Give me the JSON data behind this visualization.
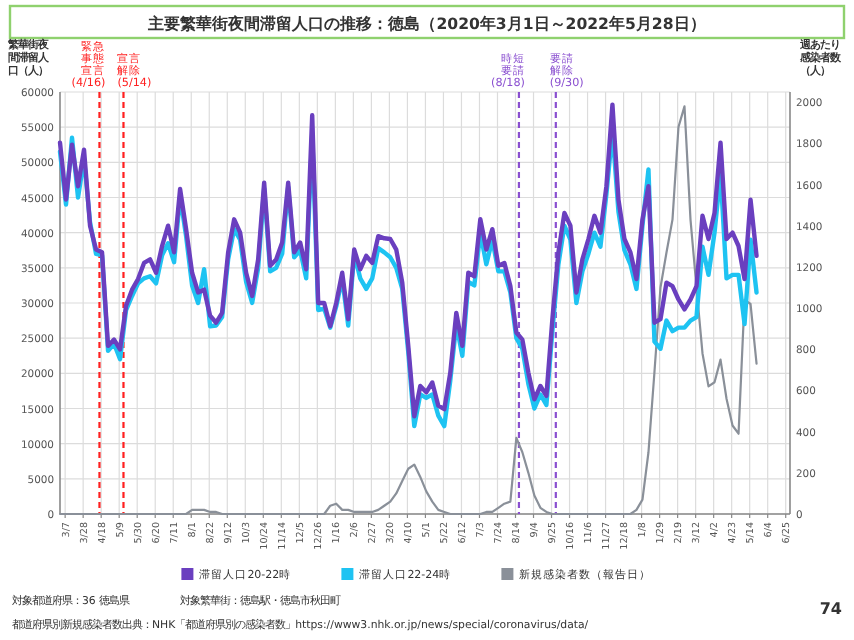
{
  "chart_data": {
    "type": "line",
    "title": "主要繁華街夜間滞留人口の推移：徳島（2020年3月1日～2022年5月28日）",
    "ylabel": "繁華街夜間滞留人口（人）",
    "y2label": "週あたり感染者数（人）",
    "x": [
      "2020-03-01",
      "2020-03-08",
      "2020-03-15",
      "2020-03-22",
      "2020-03-29",
      "2020-04-05",
      "2020-04-12",
      "2020-04-19",
      "2020-04-26",
      "2020-05-03",
      "2020-05-10",
      "2020-05-17",
      "2020-05-24",
      "2020-05-31",
      "2020-06-07",
      "2020-06-14",
      "2020-06-21",
      "2020-06-28",
      "2020-07-05",
      "2020-07-12",
      "2020-07-19",
      "2020-07-26",
      "2020-08-02",
      "2020-08-09",
      "2020-08-16",
      "2020-08-23",
      "2020-08-30",
      "2020-09-06",
      "2020-09-13",
      "2020-09-20",
      "2020-09-27",
      "2020-10-04",
      "2020-10-11",
      "2020-10-18",
      "2020-10-25",
      "2020-11-01",
      "2020-11-08",
      "2020-11-15",
      "2020-11-22",
      "2020-11-29",
      "2020-12-06",
      "2020-12-13",
      "2020-12-20",
      "2020-12-27",
      "2021-01-03",
      "2021-01-10",
      "2021-01-17",
      "2021-01-24",
      "2021-01-31",
      "2021-02-07",
      "2021-02-14",
      "2021-02-21",
      "2021-02-28",
      "2021-03-07",
      "2021-03-14",
      "2021-03-21",
      "2021-03-28",
      "2021-04-04",
      "2021-04-11",
      "2021-04-18",
      "2021-04-25",
      "2021-05-02",
      "2021-05-09",
      "2021-05-16",
      "2021-05-23",
      "2021-05-30",
      "2021-06-06",
      "2021-06-13",
      "2021-06-20",
      "2021-06-27",
      "2021-07-04",
      "2021-07-11",
      "2021-07-18",
      "2021-07-25",
      "2021-08-01",
      "2021-08-08",
      "2021-08-15",
      "2021-08-22",
      "2021-08-29",
      "2021-09-05",
      "2021-09-12",
      "2021-09-19",
      "2021-09-26",
      "2021-10-03",
      "2021-10-10",
      "2021-10-17",
      "2021-10-24",
      "2021-10-31",
      "2021-11-07",
      "2021-11-14",
      "2021-11-21",
      "2021-11-28",
      "2021-12-05",
      "2021-12-12",
      "2021-12-19",
      "2021-12-26",
      "2022-01-02",
      "2022-01-09",
      "2022-01-16",
      "2022-01-23",
      "2022-01-30",
      "2022-02-06",
      "2022-02-13",
      "2022-02-20",
      "2022-02-27",
      "2022-03-06",
      "2022-03-13",
      "2022-03-20",
      "2022-03-27",
      "2022-04-03",
      "2022-04-10",
      "2022-04-17",
      "2022-04-24",
      "2022-05-01",
      "2022-05-08",
      "2022-05-15",
      "2022-05-22"
    ],
    "series": [
      {
        "name": "滞留人口20-22時",
        "color": "#6a3fbf",
        "values": [
          52800,
          44700,
          52500,
          46600,
          51800,
          41000,
          37600,
          37200,
          23900,
          24800,
          23400,
          29600,
          31900,
          33400,
          35700,
          36200,
          34300,
          38100,
          41000,
          37200,
          46200,
          40500,
          34300,
          31500,
          31900,
          28200,
          27200,
          28600,
          37200,
          41900,
          40000,
          34300,
          31000,
          36200,
          47100,
          35300,
          36200,
          38600,
          47100,
          37200,
          38600,
          34800,
          56700,
          30000,
          30000,
          26700,
          30000,
          34300,
          27700,
          37600,
          34800,
          36700,
          35700,
          39500,
          39200,
          39100,
          37600,
          32900,
          23900,
          13900,
          18200,
          17300,
          18700,
          15400,
          14900,
          20100,
          28600,
          23900,
          34300,
          33800,
          41900,
          37600,
          40500,
          35300,
          35700,
          32400,
          25800,
          24800,
          20100,
          16300,
          18200,
          16800,
          27700,
          37200,
          42800,
          41000,
          31500,
          36200,
          39100,
          42400,
          40000,
          46600,
          58200,
          44700,
          39100,
          37200,
          33400,
          41900,
          46600,
          27200,
          27700,
          32900,
          32400,
          30500,
          29100,
          30500,
          32400,
          42400,
          39100,
          42800,
          52800,
          39100,
          40000,
          38100,
          33400,
          44700,
          36700
        ]
      },
      {
        "name": "滞留人口22-24時",
        "color": "#1ec3f2",
        "values": [
          51500,
          44000,
          53500,
          45000,
          50500,
          41500,
          37000,
          36800,
          23200,
          24200,
          22000,
          29000,
          31000,
          32800,
          33500,
          33800,
          32800,
          36800,
          38500,
          35800,
          45200,
          39500,
          32500,
          30000,
          34800,
          26700,
          26800,
          28000,
          36200,
          40500,
          39000,
          33000,
          30000,
          35000,
          46300,
          34500,
          35000,
          37000,
          46500,
          36500,
          37500,
          33500,
          54000,
          29000,
          29200,
          26500,
          29500,
          33500,
          26800,
          37000,
          33500,
          32000,
          33500,
          37800,
          37200,
          36500,
          35000,
          32000,
          23000,
          12500,
          17000,
          16500,
          17000,
          14000,
          12500,
          19000,
          27000,
          22500,
          33000,
          32500,
          40000,
          35500,
          39000,
          34500,
          34500,
          31500,
          25000,
          23500,
          18500,
          15000,
          17000,
          15500,
          26000,
          35500,
          41000,
          39000,
          30000,
          34500,
          37000,
          40000,
          38000,
          45500,
          54500,
          43000,
          37500,
          35500,
          32000,
          41000,
          49000,
          24500,
          23500,
          27500,
          26000,
          26500,
          26500,
          27500,
          28000,
          38000,
          34000,
          40000,
          48500,
          33500,
          34000,
          34000,
          27000,
          39000,
          31500
        ]
      },
      {
        "name": "新規感染者数（報告日）",
        "color": "#8a9099",
        "axis": "y2",
        "values": [
          0,
          0,
          0,
          0,
          0,
          0,
          0,
          0,
          0,
          0,
          0,
          0,
          0,
          0,
          0,
          0,
          0,
          0,
          0,
          0,
          0,
          0,
          20,
          20,
          20,
          10,
          10,
          0,
          0,
          0,
          0,
          0,
          0,
          0,
          0,
          0,
          0,
          0,
          0,
          0,
          0,
          0,
          0,
          0,
          0,
          40,
          50,
          20,
          20,
          10,
          10,
          10,
          10,
          20,
          40,
          60,
          100,
          160,
          220,
          240,
          180,
          110,
          60,
          20,
          10,
          0,
          0,
          0,
          0,
          0,
          0,
          10,
          10,
          30,
          50,
          60,
          370,
          300,
          200,
          90,
          30,
          10,
          0,
          0,
          0,
          0,
          0,
          0,
          0,
          0,
          0,
          0,
          0,
          0,
          0,
          0,
          20,
          70,
          300,
          690,
          1100,
          1270,
          1430,
          1880,
          1980,
          1430,
          1100,
          780,
          620,
          640,
          750,
          560,
          430,
          390,
          1040,
          1020,
          730
        ]
      }
    ],
    "xlim": [
      "2020-03-01",
      "2022-06-30"
    ],
    "xticks": [
      {
        "value": "2020-03-07",
        "label": "3/7"
      },
      {
        "value": "2020-03-28",
        "label": "3/28"
      },
      {
        "value": "2020-04-18",
        "label": "4/18"
      },
      {
        "value": "2020-05-09",
        "label": "5/9"
      },
      {
        "value": "2020-05-30",
        "label": "5/30"
      },
      {
        "value": "2020-06-20",
        "label": "6/20"
      },
      {
        "value": "2020-07-11",
        "label": "7/11"
      },
      {
        "value": "2020-08-01",
        "label": "8/1"
      },
      {
        "value": "2020-08-22",
        "label": "8/22"
      },
      {
        "value": "2020-09-12",
        "label": "9/12"
      },
      {
        "value": "2020-10-03",
        "label": "10/3"
      },
      {
        "value": "2020-10-24",
        "label": "10/24"
      },
      {
        "value": "2020-11-14",
        "label": "11/14"
      },
      {
        "value": "2020-12-05",
        "label": "12/5"
      },
      {
        "value": "2020-12-26",
        "label": "12/26"
      },
      {
        "value": "2021-01-16",
        "label": "1/16"
      },
      {
        "value": "2021-02-06",
        "label": "2/6"
      },
      {
        "value": "2021-02-27",
        "label": "2/27"
      },
      {
        "value": "2021-03-20",
        "label": "3/20"
      },
      {
        "value": "2021-04-10",
        "label": "4/10"
      },
      {
        "value": "2021-05-01",
        "label": "5/1"
      },
      {
        "value": "2021-05-22",
        "label": "5/22"
      },
      {
        "value": "2021-06-12",
        "label": "6/12"
      },
      {
        "value": "2021-07-03",
        "label": "7/3"
      },
      {
        "value": "2021-07-24",
        "label": "7/24"
      },
      {
        "value": "2021-08-14",
        "label": "8/14"
      },
      {
        "value": "2021-09-04",
        "label": "9/4"
      },
      {
        "value": "2021-09-25",
        "label": "9/25"
      },
      {
        "value": "2021-10-16",
        "label": "10/16"
      },
      {
        "value": "2021-11-06",
        "label": "11/6"
      },
      {
        "value": "2021-11-27",
        "label": "11/27"
      },
      {
        "value": "2021-12-18",
        "label": "12/18"
      },
      {
        "value": "2022-01-08",
        "label": "1/8"
      },
      {
        "value": "2022-01-29",
        "label": "1/29"
      },
      {
        "value": "2022-02-19",
        "label": "2/19"
      },
      {
        "value": "2022-03-12",
        "label": "3/12"
      },
      {
        "value": "2022-04-02",
        "label": "4/2"
      },
      {
        "value": "2022-04-23",
        "label": "4/23"
      },
      {
        "value": "2022-05-14",
        "label": "5/14"
      },
      {
        "value": "2022-06-04",
        "label": "6/4"
      },
      {
        "value": "2022-06-25",
        "label": "6/25"
      }
    ],
    "ylim": [
      0,
      60000
    ],
    "yticks": [
      0,
      5000,
      10000,
      15000,
      20000,
      25000,
      30000,
      35000,
      40000,
      45000,
      50000,
      55000,
      60000
    ],
    "y2lim": [
      0,
      2050
    ],
    "y2ticks": [
      0,
      200,
      400,
      600,
      800,
      1000,
      1200,
      1400,
      1600,
      1800,
      2000
    ],
    "ref_lines": [
      {
        "axis": "x",
        "value": "2020-04-16",
        "label": "緊急事態宣言(4/16)",
        "color": "#ff2020",
        "line_style": "dashed"
      },
      {
        "axis": "x",
        "value": "2020-05-14",
        "label": "宣言解除(5/14)",
        "color": "#ff2020",
        "line_style": "dashed"
      },
      {
        "axis": "x",
        "value": "2021-08-18",
        "label": "時短要請(8/18)",
        "color": "#8a4fd0",
        "line_style": "dashed"
      },
      {
        "axis": "x",
        "value": "2021-09-30",
        "label": "要請解除(9/30)",
        "color": "#8a4fd0",
        "line_style": "dashed"
      }
    ],
    "grid": true,
    "legend": "bottom",
    "annotations": [
      "対象都道府県：36 徳島県",
      "対象繁華街：徳島駅・徳島市秋田町",
      "都道府県別新規感染者数出典：NHK「都道府県別の感染者数」https://www3.nhk.or.jp/news/special/coronavirus/data/",
      "74"
    ]
  }
}
